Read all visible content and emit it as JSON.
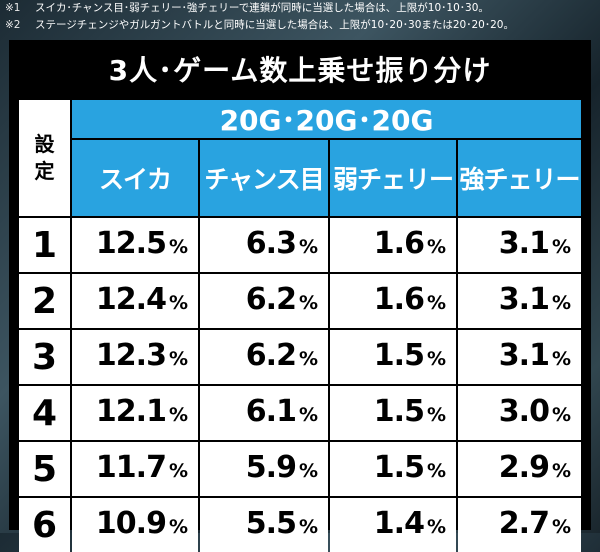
{
  "notes": [
    {
      "mark": "※1",
      "text": "スイカ･チャンス目･弱チェリー･強チェリーで連鎖が同時に当選した場合は、上限が10･10･30。"
    },
    {
      "mark": "※2",
      "text": "ステージチェンジやガルガントバトルと同時に当選した場合は、上限が10･20･30または20･20･20。"
    }
  ],
  "table": {
    "title": "3人･ゲーム数上乗せ振り分け",
    "setting_label": [
      "設",
      "定"
    ],
    "group_header": "20G･20G･20G",
    "columns": [
      "スイカ",
      "チャンス目",
      "弱チェリー",
      "強チェリー"
    ],
    "percent_unit": "%",
    "rows": [
      {
        "setting": "1",
        "values": [
          "12.5",
          "6.3",
          "1.6",
          "3.1"
        ]
      },
      {
        "setting": "2",
        "values": [
          "12.4",
          "6.2",
          "1.6",
          "3.1"
        ]
      },
      {
        "setting": "3",
        "values": [
          "12.3",
          "6.2",
          "1.5",
          "3.1"
        ]
      },
      {
        "setting": "4",
        "values": [
          "12.1",
          "6.1",
          "1.5",
          "3.0"
        ]
      },
      {
        "setting": "5",
        "values": [
          "11.7",
          "5.9",
          "1.5",
          "2.9"
        ]
      },
      {
        "setting": "6",
        "values": [
          "10.9",
          "5.5",
          "1.4",
          "2.7"
        ]
      }
    ]
  },
  "colors": {
    "header_blue": "#29a3e0",
    "cell_white": "#ffffff",
    "grid_black": "#000000"
  }
}
